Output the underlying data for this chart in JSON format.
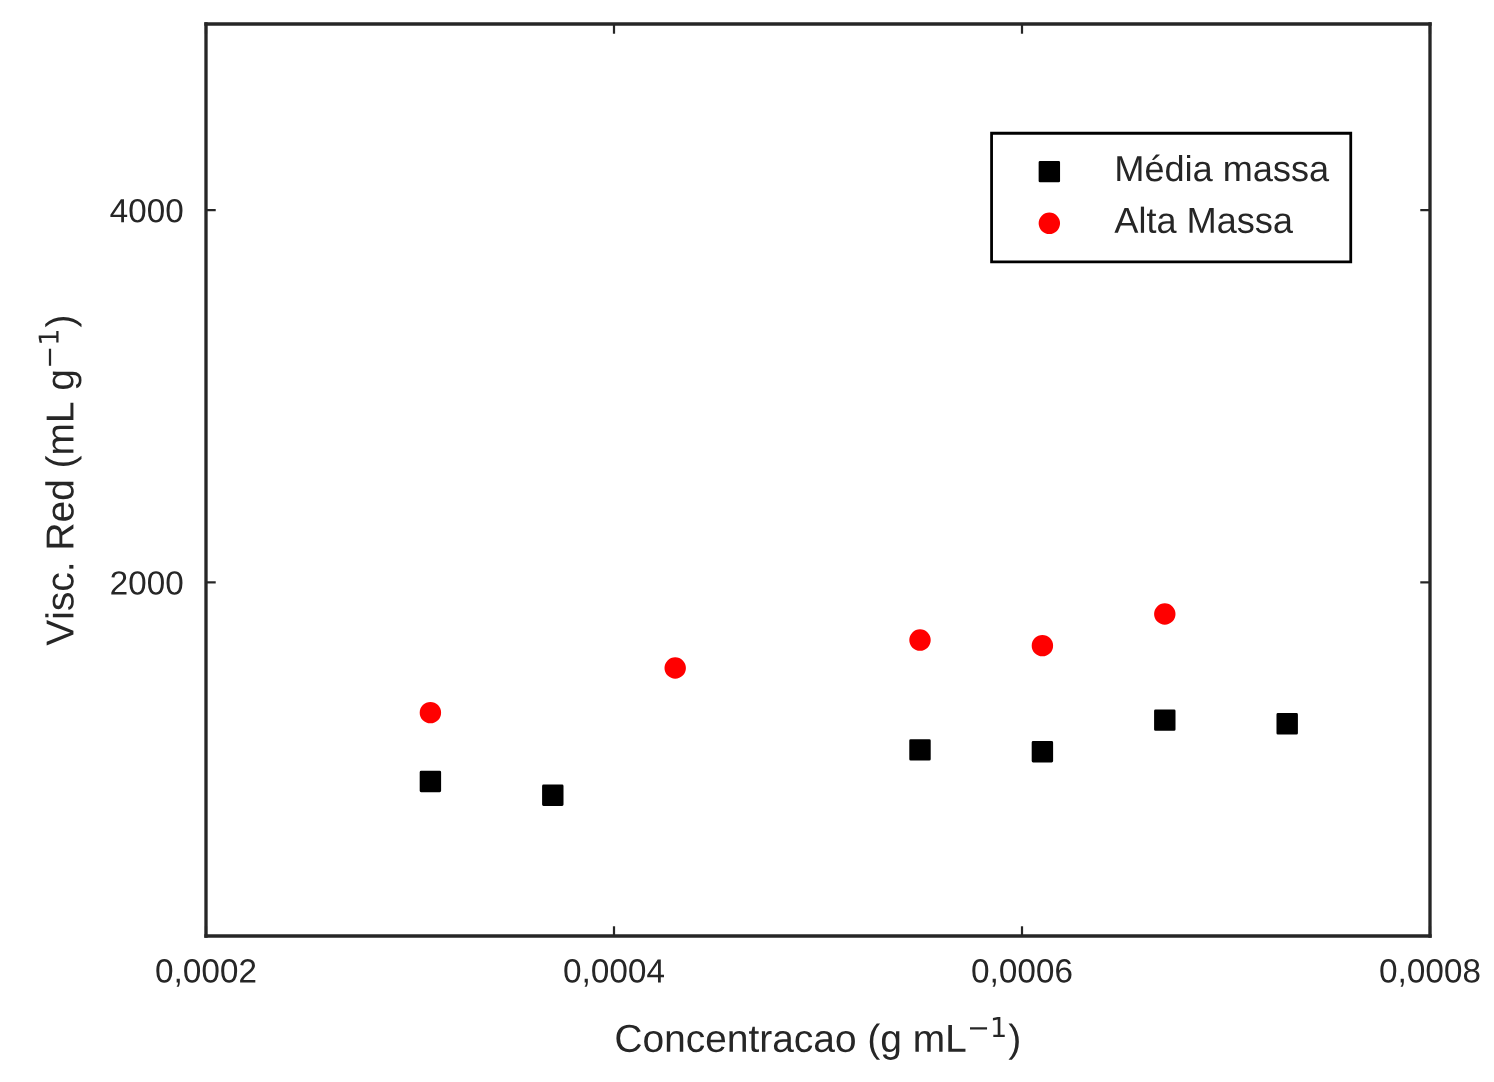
{
  "chart_data": {
    "type": "scatter",
    "xlabel": "Concentracao (g mL$^{−1}$)",
    "ylabel": "Visc. Red (mL g$^{−1}$)",
    "xlim": [
      0.0002,
      0.0008
    ],
    "xticks": [
      {
        "value": 0.0002,
        "label": "0,0002"
      },
      {
        "value": 0.0004,
        "label": "0,0004"
      },
      {
        "value": 0.0006,
        "label": "0,0006"
      },
      {
        "value": 0.0008,
        "label": "0,0008"
      }
    ],
    "ylim": [
      100,
      5000
    ],
    "yticks": [
      2000,
      4000
    ],
    "grid": false,
    "legend": "top right",
    "series": [
      {
        "name": "Média massa",
        "color": "#000000",
        "marker": "square",
        "x": [
          0.00031,
          0.00037,
          0.00055,
          0.00061,
          0.00067,
          0.00073
        ],
        "values": [
          930,
          856,
          1100,
          1090,
          1260,
          1240
        ]
      },
      {
        "name": "Alta Massa",
        "color": "#ff0000",
        "marker": "circle",
        "x": [
          0.00031,
          0.00043,
          0.00055,
          0.00061,
          0.00067
        ],
        "values": [
          1300,
          1540,
          1690,
          1660,
          1830
        ]
      }
    ]
  }
}
